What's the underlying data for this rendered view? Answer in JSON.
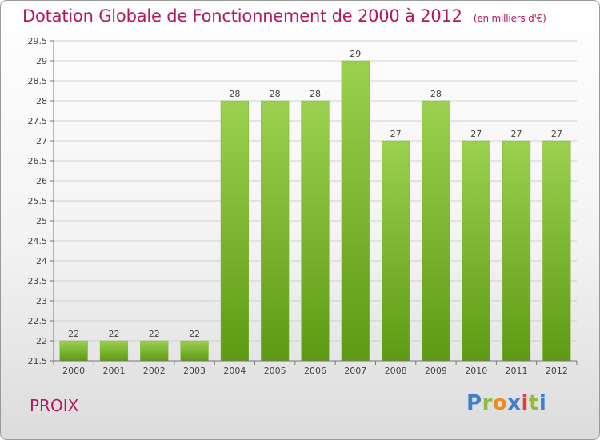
{
  "title": "Dotation Globale de Fonctionnement de 2000 à 2012",
  "subtitle": "(en milliers d'€)",
  "place": "PROIX",
  "logo": {
    "letters": [
      "P",
      "r",
      "o",
      "x",
      "i",
      "t",
      "i"
    ],
    "colors": [
      "#3f7fc8",
      "#8fbc3c",
      "#f08a1c",
      "#3f7fc8",
      "#e03c3c",
      "#8fbc3c",
      "#3f7fc8"
    ]
  },
  "colors": {
    "bar_top": "#9bd14f",
    "bar_bottom": "#5e9a14",
    "title": "#b5175e"
  },
  "chart_data": {
    "type": "bar",
    "categories": [
      "2000",
      "2001",
      "2002",
      "2003",
      "2004",
      "2005",
      "2006",
      "2007",
      "2008",
      "2009",
      "2010",
      "2011",
      "2012"
    ],
    "values": [
      22,
      22,
      22,
      22,
      28,
      28,
      28,
      29,
      27,
      28,
      27,
      27,
      27
    ],
    "data_labels": [
      "22",
      "22",
      "22",
      "22",
      "28",
      "28",
      "28",
      "29",
      "27",
      "28",
      "27",
      "27",
      "27"
    ],
    "ylim": [
      21.5,
      29.5
    ],
    "yticks": [
      21.5,
      22,
      22.5,
      23,
      23.5,
      24,
      24.5,
      25,
      25.5,
      26,
      26.5,
      27,
      27.5,
      28,
      28.5,
      29,
      29.5
    ],
    "ytick_labels": [
      "21.5",
      "22",
      "22.5",
      "23",
      "23.5",
      "24",
      "24.5",
      "25",
      "25.5",
      "26",
      "26.5",
      "27",
      "27.5",
      "28",
      "28.5",
      "29",
      "29.5"
    ],
    "grid": true
  }
}
